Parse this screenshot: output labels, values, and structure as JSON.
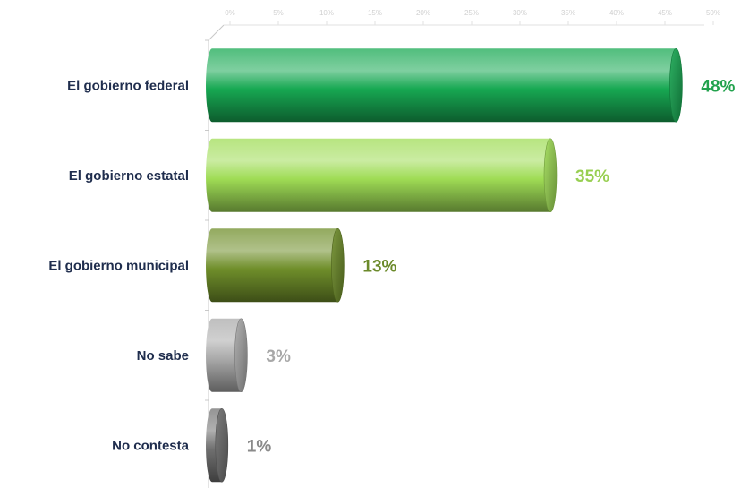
{
  "chart_data": {
    "type": "bar",
    "orientation": "horizontal",
    "categories": [
      "El gobierno federal",
      "El gobierno estatal",
      "El gobierno municipal",
      "No sabe",
      "No contesta"
    ],
    "values": [
      48,
      35,
      13,
      3,
      1
    ],
    "value_labels": [
      "48%",
      "35%",
      "13%",
      "3%",
      "1%"
    ],
    "bar_colors": [
      "#17a852",
      "#9fdc55",
      "#6f8e2a",
      "#a9a9a9",
      "#707070"
    ],
    "label_colors": [
      "#22a24d",
      "#98cf52",
      "#6b8a2a",
      "#a8a8a8",
      "#8a8a8a"
    ],
    "xlim": [
      0,
      50
    ],
    "xticks": [
      0,
      5,
      10,
      15,
      20,
      25,
      30,
      35,
      40,
      45,
      50
    ],
    "xtick_labels": [
      "0%",
      "5%",
      "10%",
      "15%",
      "20%",
      "25%",
      "30%",
      "35%",
      "40%",
      "45%",
      "50%"
    ],
    "grid": false,
    "title": "",
    "xlabel": "",
    "ylabel": ""
  }
}
